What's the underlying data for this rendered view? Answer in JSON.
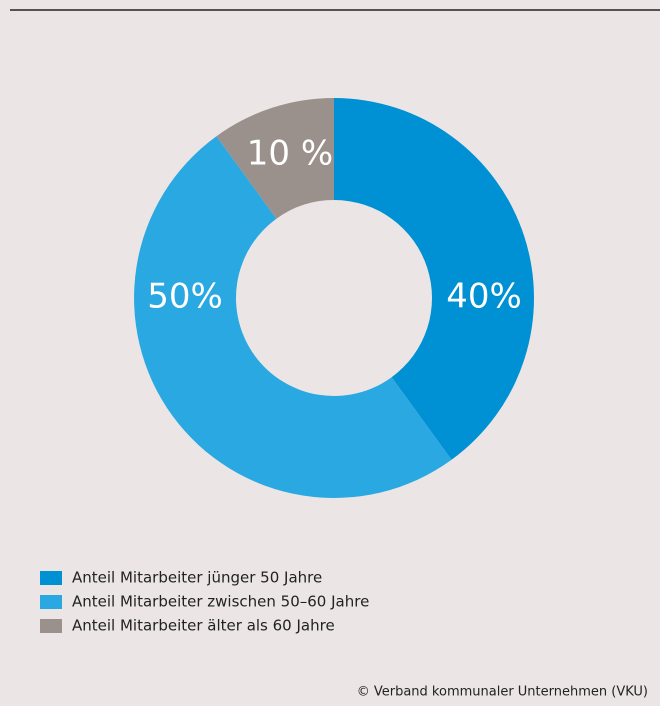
{
  "chart_data": {
    "type": "pie",
    "categories": [
      "Anteil Mitarbeiter jünger 50 Jahre",
      "Anteil Mitarbeiter zwischen 50–60 Jahre",
      "Anteil Mitarbeiter älter als 60 Jahre"
    ],
    "values": [
      40,
      50,
      10
    ],
    "value_labels": [
      "40%",
      "50%",
      "10 %"
    ],
    "colors": [
      "#0090d4",
      "#29a8e2",
      "#9b918c"
    ],
    "source": "© Verband kommunaler Unternehmen (VKU)"
  }
}
